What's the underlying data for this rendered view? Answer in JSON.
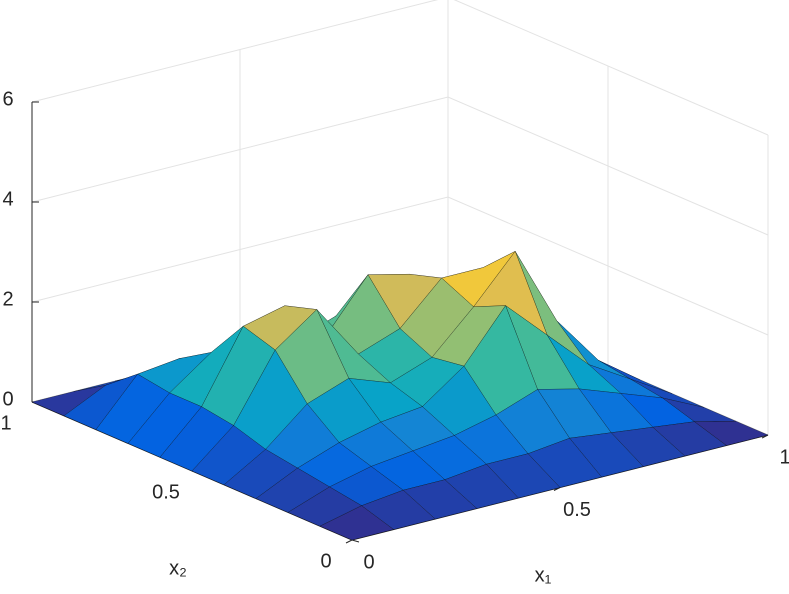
{
  "chart_data": {
    "type": "surface",
    "x": [
      0,
      0.1,
      0.2,
      0.3,
      0.4,
      0.5,
      0.6,
      0.7,
      0.8,
      0.9,
      1
    ],
    "y": [
      0,
      0.1,
      0.2,
      0.3,
      0.4,
      0.5,
      0.6,
      0.7,
      0.8,
      0.9,
      1
    ],
    "z": [
      [
        0,
        0,
        0,
        0,
        0,
        0,
        0,
        0,
        0,
        0,
        0
      ],
      [
        0,
        0.2,
        0.3,
        0.3,
        0.4,
        0.4,
        0.5,
        0.4,
        0.3,
        0.2,
        0
      ],
      [
        0,
        0.3,
        0.5,
        0.6,
        0.7,
        0.9,
        1.2,
        1.0,
        0.7,
        0.4,
        0
      ],
      [
        0,
        0.4,
        0.7,
        0.9,
        1.0,
        1.6,
        2.6,
        1.8,
        1.0,
        0.5,
        0
      ],
      [
        0,
        0.5,
        1.2,
        1.5,
        1.2,
        1.5,
        2.3,
        3.2,
        1.6,
        0.6,
        0
      ],
      [
        0,
        0.7,
        2.0,
        2.6,
        1.5,
        1.8,
        2.6,
        2.6,
        1.4,
        0.6,
        0
      ],
      [
        0,
        0.8,
        2.2,
        2.4,
        1.6,
        2.6,
        2.4,
        1.4,
        0.9,
        0.5,
        0
      ],
      [
        0,
        0.8,
        1.4,
        1.4,
        1.2,
        1.5,
        1.3,
        0.8,
        0.6,
        0.4,
        0
      ],
      [
        0,
        0.9,
        1.0,
        0.8,
        0.7,
        0.7,
        0.6,
        0.5,
        0.4,
        0.3,
        0
      ],
      [
        0,
        0.4,
        0.4,
        0.4,
        0.3,
        0.3,
        0.3,
        0.2,
        0.2,
        0.1,
        0
      ],
      [
        0,
        0,
        0,
        0,
        0,
        0,
        0,
        0,
        0,
        0,
        0
      ]
    ],
    "xlabel": "x₁",
    "ylabel": "x₂",
    "xlim": [
      0,
      1
    ],
    "ylim": [
      0,
      1
    ],
    "zlim": [
      0,
      6
    ],
    "xticks": [
      0,
      0.5,
      1
    ],
    "yticks": [
      0,
      0.5,
      1
    ],
    "zticks": [
      0,
      2,
      4,
      6
    ],
    "grid": true,
    "colormap": [
      "#352a87",
      "#0363e1",
      "#1485d4",
      "#06a7c6",
      "#38b99e",
      "#92bf73",
      "#d9ba56",
      "#fcce2e",
      "#f9fb0e"
    ],
    "edgecolor": "#000000"
  }
}
